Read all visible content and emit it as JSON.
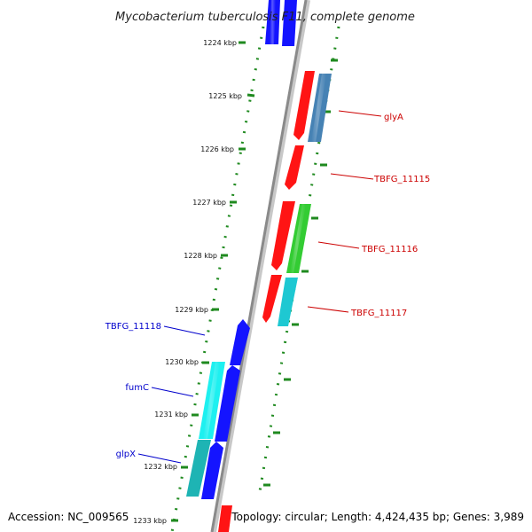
{
  "title": "Mycobacterium tuberculosis F11, complete genome",
  "footer": {
    "accession": "Accession: NC_009565",
    "topology": "Topology: circular; Length: 4,424,435 bp; Genes: 3,989"
  },
  "colors": {
    "backbone": "#8a8a8a",
    "dotted_track": "#1f8a1f",
    "tick": "#1f8a1f",
    "label_forward": "#cc0000",
    "label_reverse": "#0000cc"
  },
  "kbp_ticks": [
    "1224 kbp",
    "1225 kbp",
    "1226 kbp",
    "1227 kbp",
    "1228 kbp",
    "1229 kbp",
    "1230 kbp",
    "1231 kbp",
    "1232 kbp",
    "1233 kbp"
  ],
  "genes": [
    {
      "color": "#1414ff"
    },
    {
      "color": "#1414ff"
    },
    {
      "color": "#ff1414"
    },
    {
      "color": "#4682b4"
    },
    {
      "color": "#ff1414"
    },
    {
      "color": "#ff1414"
    },
    {
      "color": "#33cc33"
    },
    {
      "color": "#ff1414"
    },
    {
      "color": "#1ec8d2"
    },
    {
      "color": "#1414ff"
    },
    {
      "color": "#1ef0f0"
    },
    {
      "color": "#1414ff"
    },
    {
      "color": "#1eb4b4"
    },
    {
      "color": "#1414ff"
    },
    {
      "color": "#ff1414"
    }
  ],
  "gene_labels": [
    {
      "text": "glyA",
      "side": "forward"
    },
    {
      "text": "TBFG_11115",
      "side": "forward"
    },
    {
      "text": "TBFG_11116",
      "side": "forward"
    },
    {
      "text": "TBFG_11117",
      "side": "forward"
    },
    {
      "text": "TBFG_11118",
      "side": "reverse"
    },
    {
      "text": "fumC",
      "side": "reverse"
    },
    {
      "text": "glpX",
      "side": "reverse"
    }
  ]
}
